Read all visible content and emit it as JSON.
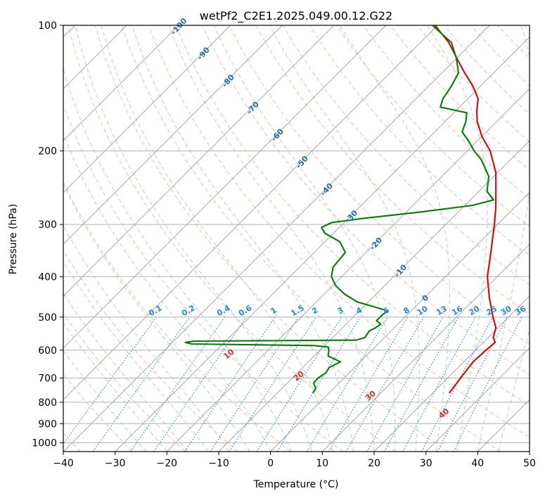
{
  "chart_data": {
    "type": "line",
    "title": "wetPf2_C2E1.2025.049.00.12.G22",
    "xlabel": "Temperature (°C)",
    "ylabel": "Pressure (hPa)",
    "xlim": [
      -40,
      50
    ],
    "ylim": [
      1050,
      100
    ],
    "y_scale": "log",
    "skew": "skew-T log-p",
    "grid": true,
    "x_ticks": [
      "−40",
      "−30",
      "−20",
      "−10",
      "0",
      "10",
      "20",
      "30",
      "40",
      "50"
    ],
    "x_tick_values": [
      -40,
      -30,
      -20,
      -10,
      0,
      10,
      20,
      30,
      40,
      50
    ],
    "y_ticks": [
      "100",
      "200",
      "300",
      "400",
      "500",
      "600",
      "700",
      "800",
      "900",
      "1000"
    ],
    "y_tick_values": [
      100,
      200,
      300,
      400,
      500,
      600,
      700,
      800,
      900,
      1000
    ],
    "isotherm_labels": [
      "-100",
      "-90",
      "-80",
      "-70",
      "-60",
      "-50",
      "-40",
      "-30",
      "-20",
      "-10",
      "0"
    ],
    "isotherm_label_values": [
      -100,
      -90,
      -80,
      -70,
      -60,
      -50,
      -40,
      -30,
      -20,
      -10,
      0
    ],
    "mixing_ratio_labels": [
      "0.1",
      "0.2",
      "0.4",
      "0.6",
      "1",
      "1.5",
      "2",
      "3",
      "4",
      "6",
      "8",
      "10",
      "13",
      "16",
      "20",
      "25",
      "30",
      "36"
    ],
    "mixing_ratio_values": [
      0.1,
      0.2,
      0.4,
      0.6,
      1,
      1.5,
      2,
      3,
      4,
      6,
      8,
      10,
      13,
      16,
      20,
      25,
      30,
      36
    ],
    "dry_adiabat_labels": [
      "10",
      "20",
      "30",
      "40"
    ],
    "dry_adiabat_values": [
      10,
      20,
      30,
      40
    ],
    "series": [
      {
        "color": "#e00000",
        "points": [
          {
            "p": 760,
            "t": 23.2
          },
          {
            "p": 700,
            "t": 22.5
          },
          {
            "p": 640,
            "t": 21.8
          },
          {
            "p": 600,
            "t": 22.0
          },
          {
            "p": 575,
            "t": 22.3
          },
          {
            "p": 560,
            "t": 21.0
          },
          {
            "p": 530,
            "t": 19.6
          },
          {
            "p": 500,
            "t": 17.0
          },
          {
            "p": 450,
            "t": 12.6
          },
          {
            "p": 400,
            "t": 8.1
          },
          {
            "p": 350,
            "t": 4.1
          },
          {
            "p": 300,
            "t": -0.6
          },
          {
            "p": 275,
            "t": -3.4
          },
          {
            "p": 250,
            "t": -6.7
          },
          {
            "p": 225,
            "t": -10.4
          },
          {
            "p": 200,
            "t": -15.6
          },
          {
            "p": 185,
            "t": -19.9
          },
          {
            "p": 170,
            "t": -23.8
          },
          {
            "p": 160,
            "t": -26.0
          },
          {
            "p": 150,
            "t": -28.0
          },
          {
            "p": 140,
            "t": -31.4
          },
          {
            "p": 130,
            "t": -35.6
          },
          {
            "p": 120,
            "t": -39.9
          },
          {
            "p": 110,
            "t": -44.5
          },
          {
            "p": 100,
            "t": -50.5
          }
        ]
      },
      {
        "color": "#008000",
        "points": [
          {
            "p": 760,
            "t": -3.1
          },
          {
            "p": 740,
            "t": -3.5
          },
          {
            "p": 720,
            "t": -4.9
          },
          {
            "p": 700,
            "t": -5.0
          },
          {
            "p": 680,
            "t": -4.5
          },
          {
            "p": 660,
            "t": -4.9
          },
          {
            "p": 640,
            "t": -3.8
          },
          {
            "p": 620,
            "t": -7.3
          },
          {
            "p": 600,
            "t": -8.3
          },
          {
            "p": 590,
            "t": -9.0
          },
          {
            "p": 585,
            "t": -12.0
          },
          {
            "p": 580,
            "t": -36.0
          },
          {
            "p": 575,
            "t": -37.5
          },
          {
            "p": 571,
            "t": -36.0
          },
          {
            "p": 568,
            "t": -5.0
          },
          {
            "p": 560,
            "t": -3.8
          },
          {
            "p": 540,
            "t": -4.2
          },
          {
            "p": 530,
            "t": -3.6
          },
          {
            "p": 520,
            "t": -3.3
          },
          {
            "p": 510,
            "t": -4.8
          },
          {
            "p": 495,
            "t": -4.8
          },
          {
            "p": 485,
            "t": -4.6
          },
          {
            "p": 480,
            "t": -5.5
          },
          {
            "p": 460,
            "t": -12.1
          },
          {
            "p": 440,
            "t": -16.2
          },
          {
            "p": 420,
            "t": -19.5
          },
          {
            "p": 400,
            "t": -22.0
          },
          {
            "p": 380,
            "t": -23.5
          },
          {
            "p": 350,
            "t": -24.0
          },
          {
            "p": 330,
            "t": -27.1
          },
          {
            "p": 315,
            "t": -31.6
          },
          {
            "p": 305,
            "t": -33.4
          },
          {
            "p": 297,
            "t": -32.4
          },
          {
            "p": 290,
            "t": -27.1
          },
          {
            "p": 280,
            "t": -17.3
          },
          {
            "p": 270,
            "t": -8.5
          },
          {
            "p": 262,
            "t": -5.5
          },
          {
            "p": 250,
            "t": -8.4
          },
          {
            "p": 230,
            "t": -11.0
          },
          {
            "p": 210,
            "t": -15.6
          },
          {
            "p": 200,
            "t": -18.7
          },
          {
            "p": 190,
            "t": -21.5
          },
          {
            "p": 180,
            "t": -24.7
          },
          {
            "p": 170,
            "t": -26.0
          },
          {
            "p": 162,
            "t": -27.5
          },
          {
            "p": 157,
            "t": -33.7
          },
          {
            "p": 150,
            "t": -34.8
          },
          {
            "p": 140,
            "t": -35.6
          },
          {
            "p": 130,
            "t": -36.8
          },
          {
            "p": 120,
            "t": -40.0
          },
          {
            "p": 110,
            "t": -44.0
          },
          {
            "p": 100,
            "t": -51.0
          }
        ]
      }
    ]
  }
}
